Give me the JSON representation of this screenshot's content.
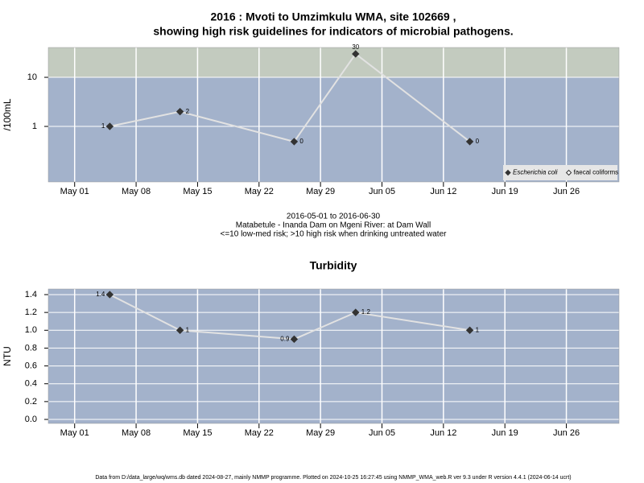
{
  "chart_data": [
    {
      "type": "line",
      "title": [
        "2016 : Mvoti to Umzimkulu WMA, site 102669 ,",
        "showing high risk guidelines for indicators of microbial pathogens."
      ],
      "subtitle": [
        "2016-05-01 to 2016-06-30",
        "Matabetule - Inanda Dam on Mgeni River: at Dam Wall",
        "<=10 low-med risk; >10 high risk when drinking untreated water"
      ],
      "y_label": "/100mL",
      "log_scale": true,
      "x": [
        "2016-05-05",
        "2016-05-13",
        "2016-05-26",
        "2016-06-02",
        "2016-06-15"
      ],
      "series": [
        {
          "name": "Escherichia coli",
          "color": "#333333",
          "line_color": "#e2e2e2",
          "values": [
            1,
            2,
            0.49,
            30,
            0.49
          ],
          "value_labels": [
            "1",
            "2",
            "0",
            "30",
            "0"
          ]
        },
        {
          "name": "faecal coliforms",
          "color": "#ffffff",
          "line_color": "#e2e2e2",
          "values": [
            null,
            null,
            null,
            null,
            null
          ]
        }
      ],
      "xlim": [
        "2016-04-28",
        "2016-07-02"
      ],
      "xticks": [
        {
          "value": "2016-05-01",
          "label": "May 01"
        },
        {
          "value": "2016-05-08",
          "label": "May 08"
        },
        {
          "value": "2016-05-15",
          "label": "May 15"
        },
        {
          "value": "2016-05-22",
          "label": "May 22"
        },
        {
          "value": "2016-05-29",
          "label": "May 29"
        },
        {
          "value": "2016-06-05",
          "label": "Jun 05"
        },
        {
          "value": "2016-06-12",
          "label": "Jun 12"
        },
        {
          "value": "2016-06-19",
          "label": "Jun 19"
        },
        {
          "value": "2016-06-26",
          "label": "Jun 26"
        }
      ],
      "ylim": [
        0.074,
        40.5
      ],
      "yticks": [
        1,
        10
      ],
      "threshold": 10,
      "band_colors": [
        "#a3b2cb",
        "#c3cbbf"
      ],
      "grid": true,
      "legend": "bottom-right"
    },
    {
      "type": "line",
      "title": [
        "Turbidity"
      ],
      "y_label": "NTU",
      "log_scale": false,
      "x": [
        "2016-05-05",
        "2016-05-13",
        "2016-05-26",
        "2016-06-02",
        "2016-06-15"
      ],
      "series": [
        {
          "color": "#333333",
          "line_color": "#e2e2e2",
          "values": [
            1.4,
            1,
            0.9,
            1.2,
            1
          ]
        }
      ],
      "xlim": [
        "2016-04-28",
        "2016-07-02"
      ],
      "xticks": [
        {
          "value": "2016-05-01",
          "label": "May 01"
        },
        {
          "value": "2016-05-08",
          "label": "May 08"
        },
        {
          "value": "2016-05-15",
          "label": "May 15"
        },
        {
          "value": "2016-05-22",
          "label": "May 22"
        },
        {
          "value": "2016-05-29",
          "label": "May 29"
        },
        {
          "value": "2016-06-05",
          "label": "Jun 05"
        },
        {
          "value": "2016-06-12",
          "label": "Jun 12"
        },
        {
          "value": "2016-06-19",
          "label": "Jun 19"
        },
        {
          "value": "2016-06-26",
          "label": "Jun 26"
        }
      ],
      "ylim": [
        -0.045,
        1.463
      ],
      "yticks": [
        {
          "value": 0,
          "label": "0.0"
        },
        0.2,
        0.4,
        0.6,
        0.8,
        {
          "value": 1,
          "label": "1.0"
        },
        1.2,
        1.4
      ],
      "band_colors": [
        "#a3b2cb"
      ],
      "grid": true
    }
  ],
  "footer": "Data from D:/data_large/wq/wms.db dated 2024-08-27, mainly NMMP programme. Plotted on 2024-10-25 16:27:45 using NMMP_WMA_web.R ver 9.3 under R version 4.4.1 (2024-06-14 ucrt)"
}
